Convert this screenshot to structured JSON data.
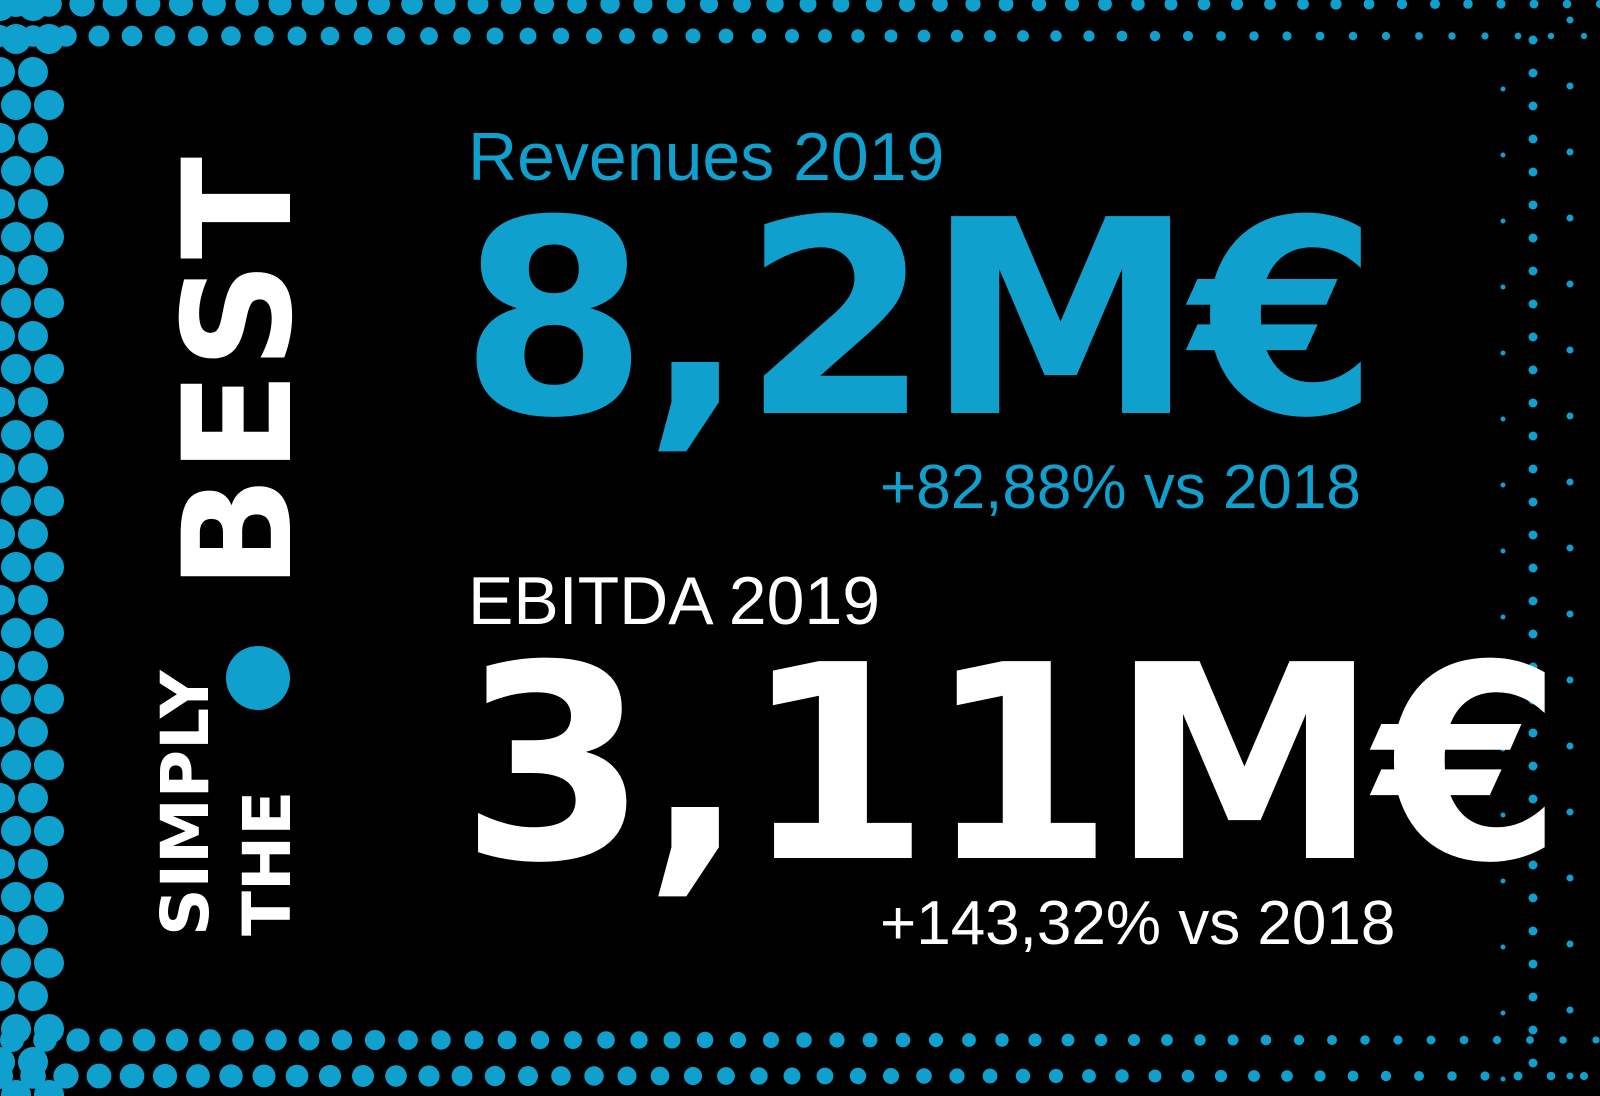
{
  "colors": {
    "background": "#000000",
    "accent": "#10A0CE",
    "text": "#FFFFFF"
  },
  "tagline": {
    "line1": "SIMPLY",
    "line2": "THE",
    "line3": "BEST"
  },
  "revenues": {
    "label": "Revenues 2019",
    "value": "8,2M€",
    "change": "+82,88% vs 2018"
  },
  "ebitda": {
    "label": "EBITDA 2019",
    "value": "3,11M€",
    "change": "+143,32% vs 2018"
  }
}
